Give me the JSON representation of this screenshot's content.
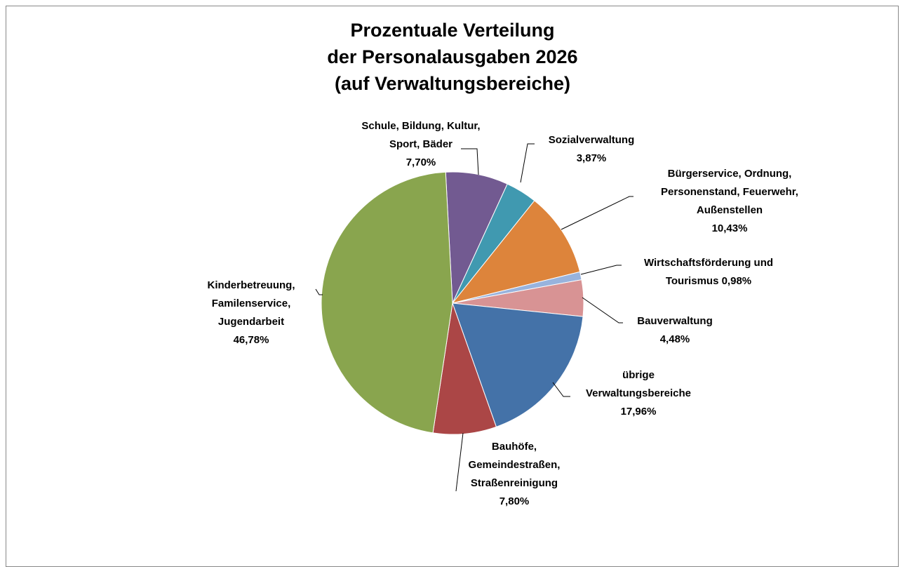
{
  "chart_data": {
    "type": "pie",
    "title": [
      "Prozentuale Verteilung",
      "der Personalausgaben 2026",
      "(auf Verwaltungsbereiche)"
    ],
    "categories": [
      "Schule, Bildung, Kultur, Sport, Bäder",
      "Sozialverwaltung",
      "Bürgerservice, Ordnung, Personenstand, Feuerwehr, Außenstellen",
      "Wirtschaftsförderung und Tourismus",
      "Bauverwaltung",
      "übrige Verwaltungsbereiche",
      "Bauhöfe, Gemeindestraßen, Straßenreinigung",
      "Kinderbetreuung, Familenservice, Jugendarbeit"
    ],
    "values": [
      7.7,
      3.87,
      10.43,
      0.98,
      4.48,
      17.96,
      7.8,
      46.78
    ],
    "value_labels": [
      "7,70%",
      "3,87%",
      "10,43%",
      "0,98%",
      "4,48%",
      "17,96%",
      "7,80%",
      "46,78%"
    ],
    "colors": [
      "#725a91",
      "#4099b0",
      "#dd843b",
      "#98b3dd",
      "#d89394",
      "#4472a8",
      "#ab4646",
      "#89a54e"
    ]
  }
}
